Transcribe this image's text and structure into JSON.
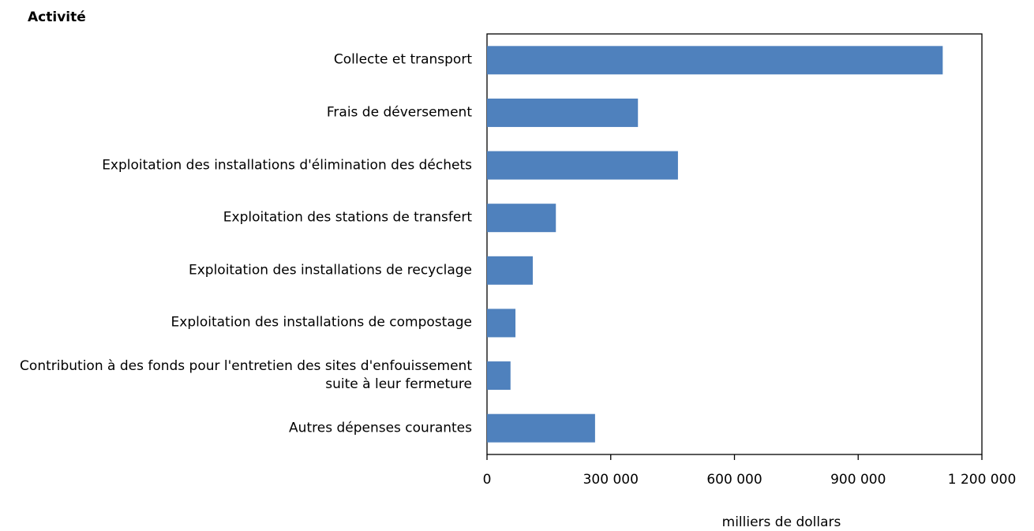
{
  "chart_data": {
    "type": "barh",
    "title": "Activité",
    "x_label": "milliers de dollars",
    "categories": [
      "Collecte et transport",
      "Frais de déversement",
      "Exploitation des installations d'élimination des déchets",
      "Exploitation des stations de transfert",
      "Exploitation des installations de recyclage",
      "Exploitation des installations de compostage",
      "Contribution à des fonds pour l'entretien des sites d'enfouissement suite à leur fermeture",
      "Autres dépenses courantes"
    ],
    "values": [
      1105000,
      366000,
      463000,
      167000,
      111000,
      69000,
      57000,
      262000
    ],
    "color": "#4f81bd",
    "xlim": [
      0,
      1200000
    ],
    "xticks": [
      0,
      {
        "value": 300000,
        "label": "300 000"
      },
      {
        "value": 600000,
        "label": "600 000"
      },
      {
        "value": 900000,
        "label": "900 000"
      },
      {
        "value": 1200000,
        "label": "1 200 000"
      }
    ],
    "grid": false
  }
}
